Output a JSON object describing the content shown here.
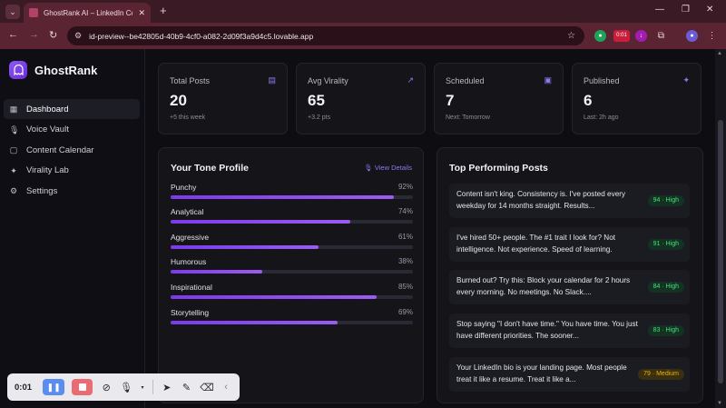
{
  "browser": {
    "tab_title": "GhostRank AI – LinkedIn Conte",
    "url": "id-preview--be42805d-40b9-4cf0-a082-2d09f3a9d4c5.lovable.app",
    "ext_badge": "0:01"
  },
  "app": {
    "name": "GhostRank"
  },
  "sidebar": {
    "items": [
      {
        "label": "Dashboard",
        "icon": "grid-icon"
      },
      {
        "label": "Voice Vault",
        "icon": "mic-icon"
      },
      {
        "label": "Content Calendar",
        "icon": "chat-icon"
      },
      {
        "label": "Virality Lab",
        "icon": "sparkle-icon"
      },
      {
        "label": "Settings",
        "icon": "gear-icon"
      }
    ]
  },
  "stats": [
    {
      "label": "Total Posts",
      "value": "20",
      "sub": "+5 this week"
    },
    {
      "label": "Avg Virality",
      "value": "65",
      "sub": "+3.2 pts"
    },
    {
      "label": "Scheduled",
      "value": "7",
      "sub": "Next: Tomorrow"
    },
    {
      "label": "Published",
      "value": "6",
      "sub": "Last: 2h ago"
    }
  ],
  "tone": {
    "title": "Your Tone Profile",
    "view_details": "View Details",
    "items": [
      {
        "label": "Punchy",
        "pct_text": "92%",
        "value": 92
      },
      {
        "label": "Analytical",
        "pct_text": "74%",
        "value": 74
      },
      {
        "label": "Aggressive",
        "pct_text": "61%",
        "value": 61
      },
      {
        "label": "Humorous",
        "pct_text": "38%",
        "value": 38
      },
      {
        "label": "Inspirational",
        "pct_text": "85%",
        "value": 85
      },
      {
        "label": "Storytelling",
        "pct_text": "69%",
        "value": 69
      }
    ]
  },
  "top_posts": {
    "title": "Top Performing Posts",
    "items": [
      {
        "text": "Content isn't king. Consistency is. I've posted every weekday for 14 months straight. Results...",
        "badge": "94 · High",
        "level": "high"
      },
      {
        "text": "I've hired 50+ people. The #1 trait I look for? Not intelligence. Not experience. Speed of learning.",
        "badge": "91 · High",
        "level": "high"
      },
      {
        "text": "Burned out? Try this: Block your calendar for 2 hours every morning. No meetings. No Slack....",
        "badge": "84 · High",
        "level": "high"
      },
      {
        "text": "Stop saying \"I don't have time.\" You have time. You just have different priorities. The sooner...",
        "badge": "83 · High",
        "level": "high"
      },
      {
        "text": "Your LinkedIn bio is your landing page. Most people treat it like a resume. Treat it like a...",
        "badge": "79 · Medium",
        "level": "medium"
      }
    ]
  },
  "recorder": {
    "time": "0:01"
  }
}
